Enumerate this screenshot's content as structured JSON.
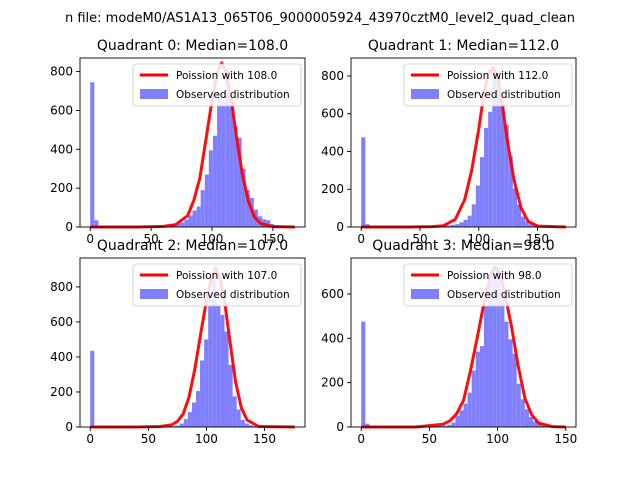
{
  "figure": {
    "suptitle": "n file: modeM0/AS1A13_065T06_9000005924_43970cztM0_level2_quad_clean"
  },
  "chart_data": [
    {
      "type": "bar",
      "title": "Quadrant 0: Median=108.0",
      "xlabel": "",
      "ylabel": "",
      "xlim": [
        -8.4,
        176.4
      ],
      "ylim": [
        0,
        870
      ],
      "xticks": [
        0,
        50,
        100,
        150
      ],
      "yticks": [
        0,
        200,
        400,
        600,
        800
      ],
      "legend_position": "upper-right",
      "legend": [
        "Poission with 108.0",
        "Observed distribution"
      ],
      "histogram": {
        "name": "Observed distribution",
        "color": "#8080ff",
        "bin_width": 3.36,
        "bins": [
          [
            0,
            745
          ],
          [
            3.36,
            35
          ],
          [
            40.3,
            3
          ],
          [
            43.7,
            4
          ],
          [
            47,
            5
          ],
          [
            50.4,
            6
          ],
          [
            53.8,
            6
          ],
          [
            57.1,
            8
          ],
          [
            60.5,
            10
          ],
          [
            63.8,
            12
          ],
          [
            67.2,
            14
          ],
          [
            70.6,
            18
          ],
          [
            73.9,
            24
          ],
          [
            77.3,
            38
          ],
          [
            80.6,
            60
          ],
          [
            84,
            85
          ],
          [
            87.4,
            105
          ],
          [
            90.7,
            190
          ],
          [
            94.1,
            270
          ],
          [
            97.4,
            395
          ],
          [
            100.8,
            470
          ],
          [
            104.2,
            700
          ],
          [
            107.5,
            650
          ],
          [
            110.9,
            805
          ],
          [
            114.2,
            630
          ],
          [
            117.6,
            520
          ],
          [
            121,
            460
          ],
          [
            124.3,
            300
          ],
          [
            127.7,
            190
          ],
          [
            131,
            150
          ],
          [
            134.4,
            90
          ],
          [
            137.8,
            55
          ],
          [
            141.1,
            40
          ],
          [
            144.5,
            35
          ],
          [
            147.8,
            15
          ],
          [
            151.2,
            10
          ],
          [
            154.6,
            8
          ],
          [
            157.9,
            5
          ],
          [
            161.3,
            3
          ],
          [
            164.6,
            2
          ]
        ]
      },
      "poisson": {
        "name": "Poission with 108.0",
        "color": "#ff0000",
        "x": [
          0,
          20,
          40,
          60,
          70,
          80,
          85,
          90,
          95,
          100,
          104,
          108,
          112,
          116,
          120,
          125,
          130,
          135,
          140,
          150,
          168
        ],
        "y": [
          0,
          0,
          0,
          3,
          12,
          58,
          135,
          250,
          450,
          650,
          790,
          845,
          790,
          650,
          470,
          270,
          130,
          50,
          18,
          2,
          0
        ]
      }
    },
    {
      "type": "bar",
      "title": "Quadrant 1: Median=112.0",
      "xlabel": "",
      "ylabel": "",
      "xlim": [
        -8.7,
        182.7
      ],
      "ylim": [
        0,
        895
      ],
      "xticks": [
        0,
        50,
        100,
        150
      ],
      "yticks": [
        0,
        200,
        400,
        600,
        800
      ],
      "legend_position": "upper-right",
      "legend": [
        "Poission with 112.0",
        "Observed distribution"
      ],
      "histogram": {
        "name": "Observed distribution",
        "color": "#8080ff",
        "bin_width": 3.48,
        "bins": [
          [
            0,
            475
          ],
          [
            3.48,
            15
          ],
          [
            45,
            3
          ],
          [
            48.5,
            4
          ],
          [
            52,
            5
          ],
          [
            55.5,
            6
          ],
          [
            59,
            6
          ],
          [
            62.5,
            7
          ],
          [
            66,
            8
          ],
          [
            69.5,
            8
          ],
          [
            73,
            9
          ],
          [
            76.5,
            12
          ],
          [
            80,
            15
          ],
          [
            83.5,
            25
          ],
          [
            87,
            38
          ],
          [
            90.5,
            60
          ],
          [
            94,
            120
          ],
          [
            97.5,
            220
          ],
          [
            101,
            370
          ],
          [
            104.5,
            525
          ],
          [
            108,
            610
          ],
          [
            111.5,
            845
          ],
          [
            115,
            790
          ],
          [
            118.5,
            650
          ],
          [
            122,
            540
          ],
          [
            125.5,
            375
          ],
          [
            129,
            205
          ],
          [
            132.5,
            120
          ],
          [
            136,
            55
          ],
          [
            139.5,
            30
          ],
          [
            143,
            15
          ],
          [
            146.5,
            10
          ],
          [
            150,
            6
          ],
          [
            153.5,
            4
          ],
          [
            157,
            2
          ]
        ]
      },
      "poisson": {
        "name": "Poission with 112.0",
        "color": "#ff0000",
        "x": [
          0,
          20,
          40,
          60,
          70,
          80,
          88,
          94,
          100,
          104,
          108,
          112,
          116,
          120,
          124,
          130,
          136,
          142,
          150,
          174
        ],
        "y": [
          0,
          0,
          0,
          2,
          7,
          40,
          145,
          300,
          520,
          690,
          810,
          845,
          790,
          650,
          470,
          250,
          100,
          30,
          5,
          0
        ]
      }
    },
    {
      "type": "bar",
      "title": "Quadrant 2: Median=107.0",
      "xlabel": "",
      "ylabel": "",
      "xlim": [
        -8.8,
        184.8
      ],
      "ylim": [
        0,
        965
      ],
      "xticks": [
        0,
        50,
        100,
        150
      ],
      "yticks": [
        0,
        200,
        400,
        600,
        800
      ],
      "legend_position": "upper-right",
      "legend": [
        "Poission with 107.0",
        "Observed distribution"
      ],
      "histogram": {
        "name": "Observed distribution",
        "color": "#8080ff",
        "bin_width": 3.52,
        "bins": [
          [
            0,
            435
          ],
          [
            3.52,
            8
          ],
          [
            63,
            3
          ],
          [
            66.5,
            4
          ],
          [
            70,
            5
          ],
          [
            73.5,
            8
          ],
          [
            77,
            20
          ],
          [
            80.5,
            45
          ],
          [
            84,
            85
          ],
          [
            87.5,
            140
          ],
          [
            91,
            205
          ],
          [
            94.5,
            380
          ],
          [
            98,
            500
          ],
          [
            101.5,
            755
          ],
          [
            105,
            840
          ],
          [
            108.5,
            700
          ],
          [
            112,
            640
          ],
          [
            115.5,
            545
          ],
          [
            119,
            355
          ],
          [
            122.5,
            175
          ],
          [
            126,
            100
          ],
          [
            129.5,
            40
          ],
          [
            133,
            20
          ],
          [
            136.5,
            10
          ],
          [
            140,
            5
          ],
          [
            143.5,
            3
          ]
        ]
      },
      "poisson": {
        "name": "Poission with 107.0",
        "color": "#ff0000",
        "x": [
          0,
          20,
          40,
          60,
          70,
          75,
          80,
          85,
          90,
          95,
          100,
          104,
          108,
          112,
          116,
          120,
          125,
          130,
          135,
          145,
          176
        ],
        "y": [
          0,
          0,
          0,
          3,
          12,
          32,
          75,
          170,
          330,
          530,
          720,
          840,
          910,
          840,
          700,
          500,
          260,
          110,
          40,
          3,
          0
        ]
      }
    },
    {
      "type": "bar",
      "title": "Quadrant 3: Median=98.0",
      "xlabel": "",
      "ylabel": "",
      "xlim": [
        -7.5,
        157.5
      ],
      "ylim": [
        0,
        762
      ],
      "xticks": [
        0,
        50,
        100,
        150
      ],
      "yticks": [
        0,
        200,
        400,
        600
      ],
      "legend_position": "upper-right",
      "legend": [
        "Poission with 98.0",
        "Observed distribution"
      ],
      "histogram": {
        "name": "Observed distribution",
        "color": "#8080ff",
        "bin_width": 3,
        "bins": [
          [
            0,
            475
          ],
          [
            3,
            15
          ],
          [
            51,
            3
          ],
          [
            54,
            4
          ],
          [
            57,
            5
          ],
          [
            60,
            6
          ],
          [
            63,
            10
          ],
          [
            66,
            20
          ],
          [
            69,
            50
          ],
          [
            72,
            75
          ],
          [
            75,
            105
          ],
          [
            78,
            155
          ],
          [
            81,
            255
          ],
          [
            84,
            340
          ],
          [
            87,
            365
          ],
          [
            90,
            545
          ],
          [
            93,
            660
          ],
          [
            96,
            695
          ],
          [
            99,
            720
          ],
          [
            102,
            600
          ],
          [
            105,
            475
          ],
          [
            108,
            395
          ],
          [
            111,
            330
          ],
          [
            114,
            195
          ],
          [
            117,
            125
          ],
          [
            120,
            80
          ],
          [
            123,
            45
          ],
          [
            126,
            25
          ],
          [
            129,
            15
          ],
          [
            132,
            8
          ],
          [
            135,
            5
          ]
        ]
      },
      "poisson": {
        "name": "Poission with 98.0",
        "color": "#ff0000",
        "x": [
          0,
          20,
          40,
          60,
          65,
          70,
          75,
          80,
          85,
          90,
          95,
          98,
          102,
          106,
          110,
          115,
          120,
          125,
          130,
          140,
          150
        ],
        "y": [
          0,
          0,
          0,
          12,
          28,
          60,
          120,
          250,
          400,
          560,
          690,
          720,
          690,
          580,
          460,
          280,
          130,
          55,
          18,
          2,
          0
        ]
      }
    }
  ]
}
